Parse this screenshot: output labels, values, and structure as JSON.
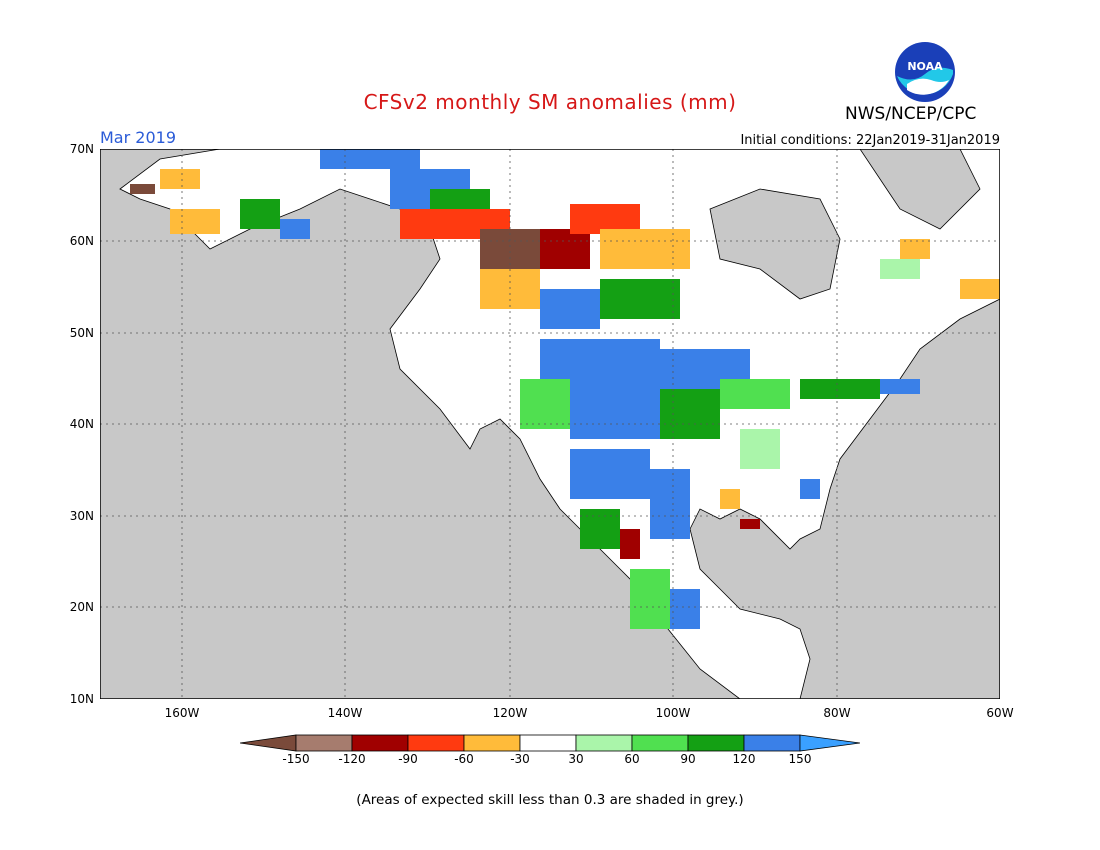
{
  "header": {
    "title": "CFSv2 monthly SM anomalies (mm)",
    "period": "Mar 2019",
    "initial_conditions": "Initial conditions: 22Jan2019-31Jan2019",
    "agency": "NWS/NCEP/CPC",
    "logo_text": "NOAA"
  },
  "map": {
    "background_grey": "#c8c8c8",
    "ocean_color": "#c8c8c8",
    "lat_labels": [
      "70N",
      "60N",
      "50N",
      "40N",
      "30N",
      "20N",
      "10N"
    ],
    "lon_labels": [
      "160W",
      "140W",
      "120W",
      "100W",
      "80W",
      "60W"
    ]
  },
  "colorbar": {
    "labels": [
      "-150",
      "-120",
      "-90",
      "-60",
      "-30",
      "30",
      "60",
      "90",
      "120",
      "150"
    ],
    "colors": [
      "#7a4a3a",
      "#a67c6e",
      "#a00000",
      "#ff3a10",
      "#ffbb3a",
      "#ffffff",
      "#aaf5aa",
      "#50e050",
      "#14a014",
      "#3a80e8",
      "#3aa0ff"
    ]
  },
  "footnote": "(Areas of expected skill less than 0.3 are shaded in grey.)"
}
